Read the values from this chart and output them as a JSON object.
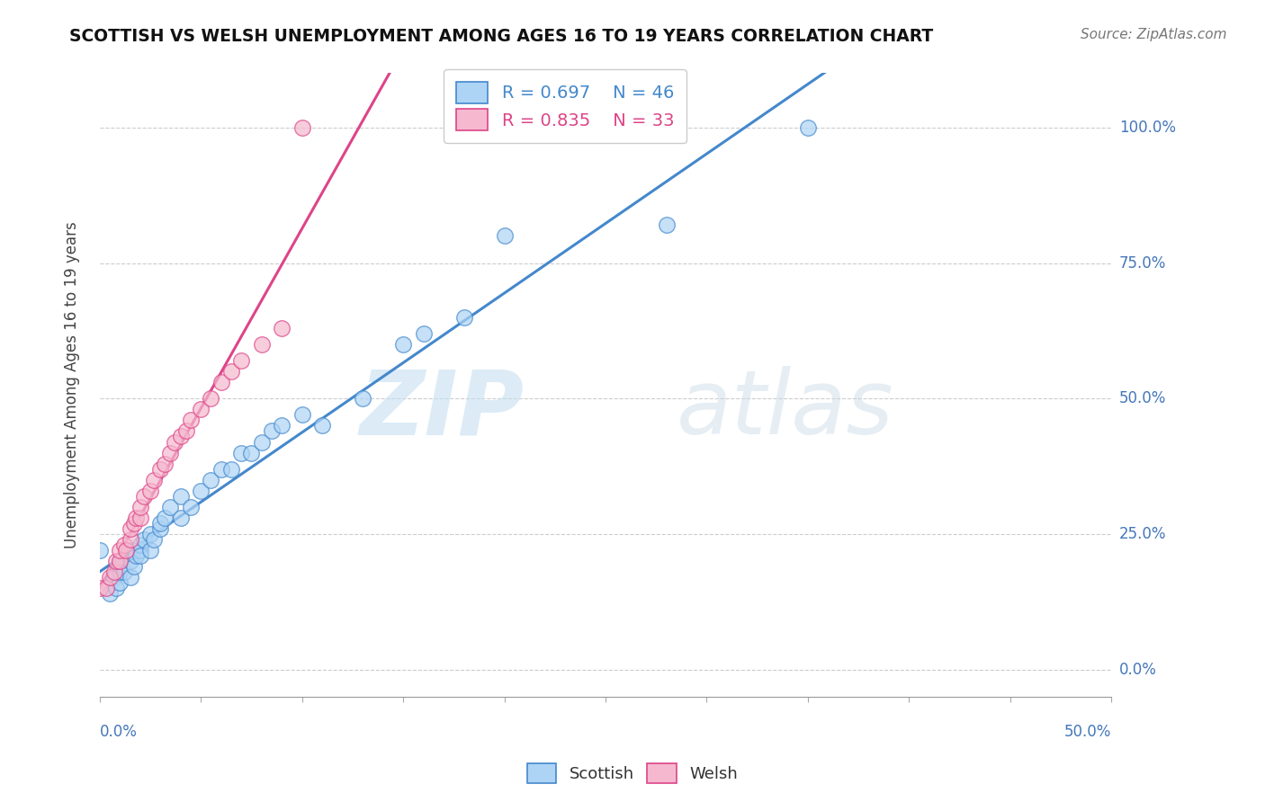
{
  "title": "SCOTTISH VS WELSH UNEMPLOYMENT AMONG AGES 16 TO 19 YEARS CORRELATION CHART",
  "source": "Source: ZipAtlas.com",
  "ylabel": "Unemployment Among Ages 16 to 19 years",
  "yticks_labels": [
    "0.0%",
    "25.0%",
    "50.0%",
    "75.0%",
    "100.0%"
  ],
  "yticks_vals": [
    0.0,
    0.25,
    0.5,
    0.75,
    1.0
  ],
  "xlim": [
    0.0,
    0.5
  ],
  "ylim": [
    -0.05,
    1.1
  ],
  "legend_r_scottish": "R = 0.697",
  "legend_n_scottish": "N = 46",
  "legend_r_welsh": "R = 0.835",
  "legend_n_welsh": "N = 33",
  "scottish_color": "#add4f5",
  "welsh_color": "#f5b8ce",
  "line_scottish": "#4488cc",
  "line_welsh": "#dd4488",
  "watermark_zip": "ZIP",
  "watermark_atlas": "atlas",
  "scottish_x": [
    0.0,
    0.005,
    0.007,
    0.008,
    0.01,
    0.01,
    0.01,
    0.01,
    0.012,
    0.015,
    0.015,
    0.016,
    0.017,
    0.018,
    0.02,
    0.02,
    0.02,
    0.022,
    0.025,
    0.025,
    0.027,
    0.03,
    0.03,
    0.032,
    0.035,
    0.04,
    0.04,
    0.045,
    0.05,
    0.055,
    0.06,
    0.065,
    0.07,
    0.075,
    0.08,
    0.085,
    0.09,
    0.1,
    0.11,
    0.13,
    0.15,
    0.16,
    0.18,
    0.2,
    0.28,
    0.35
  ],
  "scottish_y": [
    0.22,
    0.14,
    0.17,
    0.15,
    0.16,
    0.18,
    0.19,
    0.2,
    0.18,
    0.17,
    0.2,
    0.22,
    0.19,
    0.21,
    0.22,
    0.23,
    0.21,
    0.24,
    0.22,
    0.25,
    0.24,
    0.26,
    0.27,
    0.28,
    0.3,
    0.28,
    0.32,
    0.3,
    0.33,
    0.35,
    0.37,
    0.37,
    0.4,
    0.4,
    0.42,
    0.44,
    0.45,
    0.47,
    0.45,
    0.5,
    0.6,
    0.62,
    0.65,
    0.8,
    0.82,
    1.0
  ],
  "welsh_x": [
    0.0,
    0.003,
    0.005,
    0.007,
    0.008,
    0.01,
    0.01,
    0.012,
    0.013,
    0.015,
    0.015,
    0.017,
    0.018,
    0.02,
    0.02,
    0.022,
    0.025,
    0.027,
    0.03,
    0.032,
    0.035,
    0.037,
    0.04,
    0.043,
    0.045,
    0.05,
    0.055,
    0.06,
    0.065,
    0.07,
    0.08,
    0.09,
    0.1
  ],
  "welsh_y": [
    0.15,
    0.15,
    0.17,
    0.18,
    0.2,
    0.2,
    0.22,
    0.23,
    0.22,
    0.24,
    0.26,
    0.27,
    0.28,
    0.28,
    0.3,
    0.32,
    0.33,
    0.35,
    0.37,
    0.38,
    0.4,
    0.42,
    0.43,
    0.44,
    0.46,
    0.48,
    0.5,
    0.53,
    0.55,
    0.57,
    0.6,
    0.63,
    1.0
  ]
}
